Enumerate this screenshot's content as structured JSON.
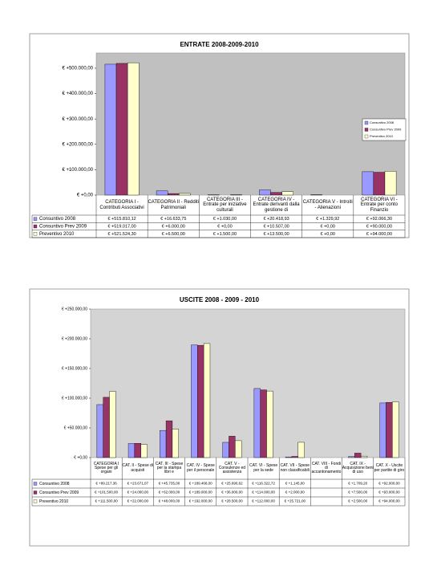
{
  "chart_data": [
    {
      "type": "bar",
      "title": "ENTRATE 2008-2009-2010",
      "categories": [
        "CATEGORIA I - Contributi Associativi",
        "CATEGORIA II - Redditi Patrimoniali",
        "CATEGORIA III - Entrate per iniziative culturali",
        "CATEGORIA IV - Entrate derivanti dalla gestione di",
        "CATEGORIA V - Introiti - Alienazioni",
        "CATEGORIA VI - Entrate per conto Finanzio"
      ],
      "series": [
        {
          "name": "Consuntivo 2008",
          "color": "#9999ff",
          "values": [
            515810.12,
            16633.75,
            1030,
            20418.93,
            1329.92,
            92066.3
          ],
          "value_labels": [
            "€ +515.810,12",
            "€ +16.633,75",
            "€ +1.030,00",
            "€ +20.418,93",
            "€ +1.329,92",
            "€ +92.066,30"
          ]
        },
        {
          "name": "Consuntivo Prev 2009",
          "color": "#993366",
          "values": [
            519017,
            6000,
            0,
            10507,
            0,
            90000
          ],
          "value_labels": [
            "€ +519.017,00",
            "€ +6.000,00",
            "€ +0,00",
            "€ +10.507,00",
            "€ +0,00",
            "€ +90.000,00"
          ]
        },
        {
          "name": "Preventivo 2010",
          "color": "#ffffcc",
          "values": [
            521524.3,
            6500,
            1500,
            13500,
            0,
            94000
          ],
          "value_labels": [
            "€ +521.524,30",
            "€ +6.500,00",
            "€ +1.500,00",
            "€ +13.500,00",
            "€ +0,00",
            "€ +94.000,00"
          ]
        }
      ],
      "ylim": [
        0,
        560000
      ],
      "yticks": [
        {
          "value": 0,
          "label": "€ +0,00"
        },
        {
          "value": 100000,
          "label": "€ +100.000,00"
        },
        {
          "value": 200000,
          "label": "€ +200.000,00"
        },
        {
          "value": 300000,
          "label": "€ +300.000,00"
        },
        {
          "value": 400000,
          "label": "€ +400.000,00"
        },
        {
          "value": 500000,
          "label": "€ +500.000,00"
        }
      ],
      "grid": false,
      "legend": "right"
    },
    {
      "type": "bar",
      "title": "USCITE 2008 - 2009 - 2010",
      "categories": [
        "CATEGORIA I Spese per gli organi",
        "CAT. II - Spese di acquisti",
        "CAT. III - Spese per la stampa libri e",
        "CAT. IV - Spese per il personale",
        "CAT. V - Consulenze ed assistenza",
        "CAT. VI - Spese per la sede",
        "CAT. VII - Spese non classificabili",
        "CAT. VIII - Fondi di accantonamento",
        "CAT. IX - Acquisizione beni di uso",
        "CAT. X - Uscite per partite di giro"
      ],
      "series": [
        {
          "name": "Consuntivo 2008",
          "color": "#9999ff",
          "values": [
            89217.36,
            23671.07,
            45735,
            189468,
            25690.62,
            116322.72,
            1145,
            null,
            1709.2,
            92000
          ],
          "value_labels": [
            "€ +89.217,36",
            "€ +23.671,07",
            "€ +45.735,00",
            "€ +189.468,00",
            "€ +25.690,62",
            "€ +116.322,72",
            "€ +1.145,00",
            null,
            "€ +1.709,20",
            "€ +92.000,00"
          ]
        },
        {
          "name": "Consuntivo Prev 2009",
          "color": "#993366",
          "values": [
            101500,
            24000,
            62000,
            189000,
            36000,
            114000,
            2000,
            null,
            7500,
            93000
          ],
          "value_labels": [
            "€ +101.500,00",
            "€ +24.000,00",
            "€ +62.000,00",
            "€ +189.000,00",
            "€ +36.000,00",
            "€ +114.000,00",
            "€ +2.000,00",
            null,
            "€ +7.500,00",
            "€ +93.000,00"
          ]
        },
        {
          "name": "Preventivo 2010",
          "color": "#ffffcc",
          "values": [
            111500,
            22000,
            48000,
            192000,
            28500,
            112000,
            25721,
            null,
            2500,
            94000
          ],
          "value_labels": [
            "€ +111.500,00",
            "€ +22.000,00",
            "€ +48.000,00",
            "€ +192.000,00",
            "€ +28.500,00",
            "€ +112.000,00",
            "€ +25.721,00",
            null,
            "€ +2.500,00",
            "€ +94.000,00"
          ]
        }
      ],
      "ylim": [
        0,
        250000
      ],
      "yticks": [
        {
          "value": 0,
          "label": "€ +0,00"
        },
        {
          "value": 50000,
          "label": "€ +50.000,00"
        },
        {
          "value": 100000,
          "label": "€ +100.000,00"
        },
        {
          "value": 150000,
          "label": "€ +150.000,00"
        },
        {
          "value": 200000,
          "label": "€ +200.000,00"
        },
        {
          "value": 250000,
          "label": "€ +250.000,00"
        }
      ],
      "grid": false
    }
  ]
}
